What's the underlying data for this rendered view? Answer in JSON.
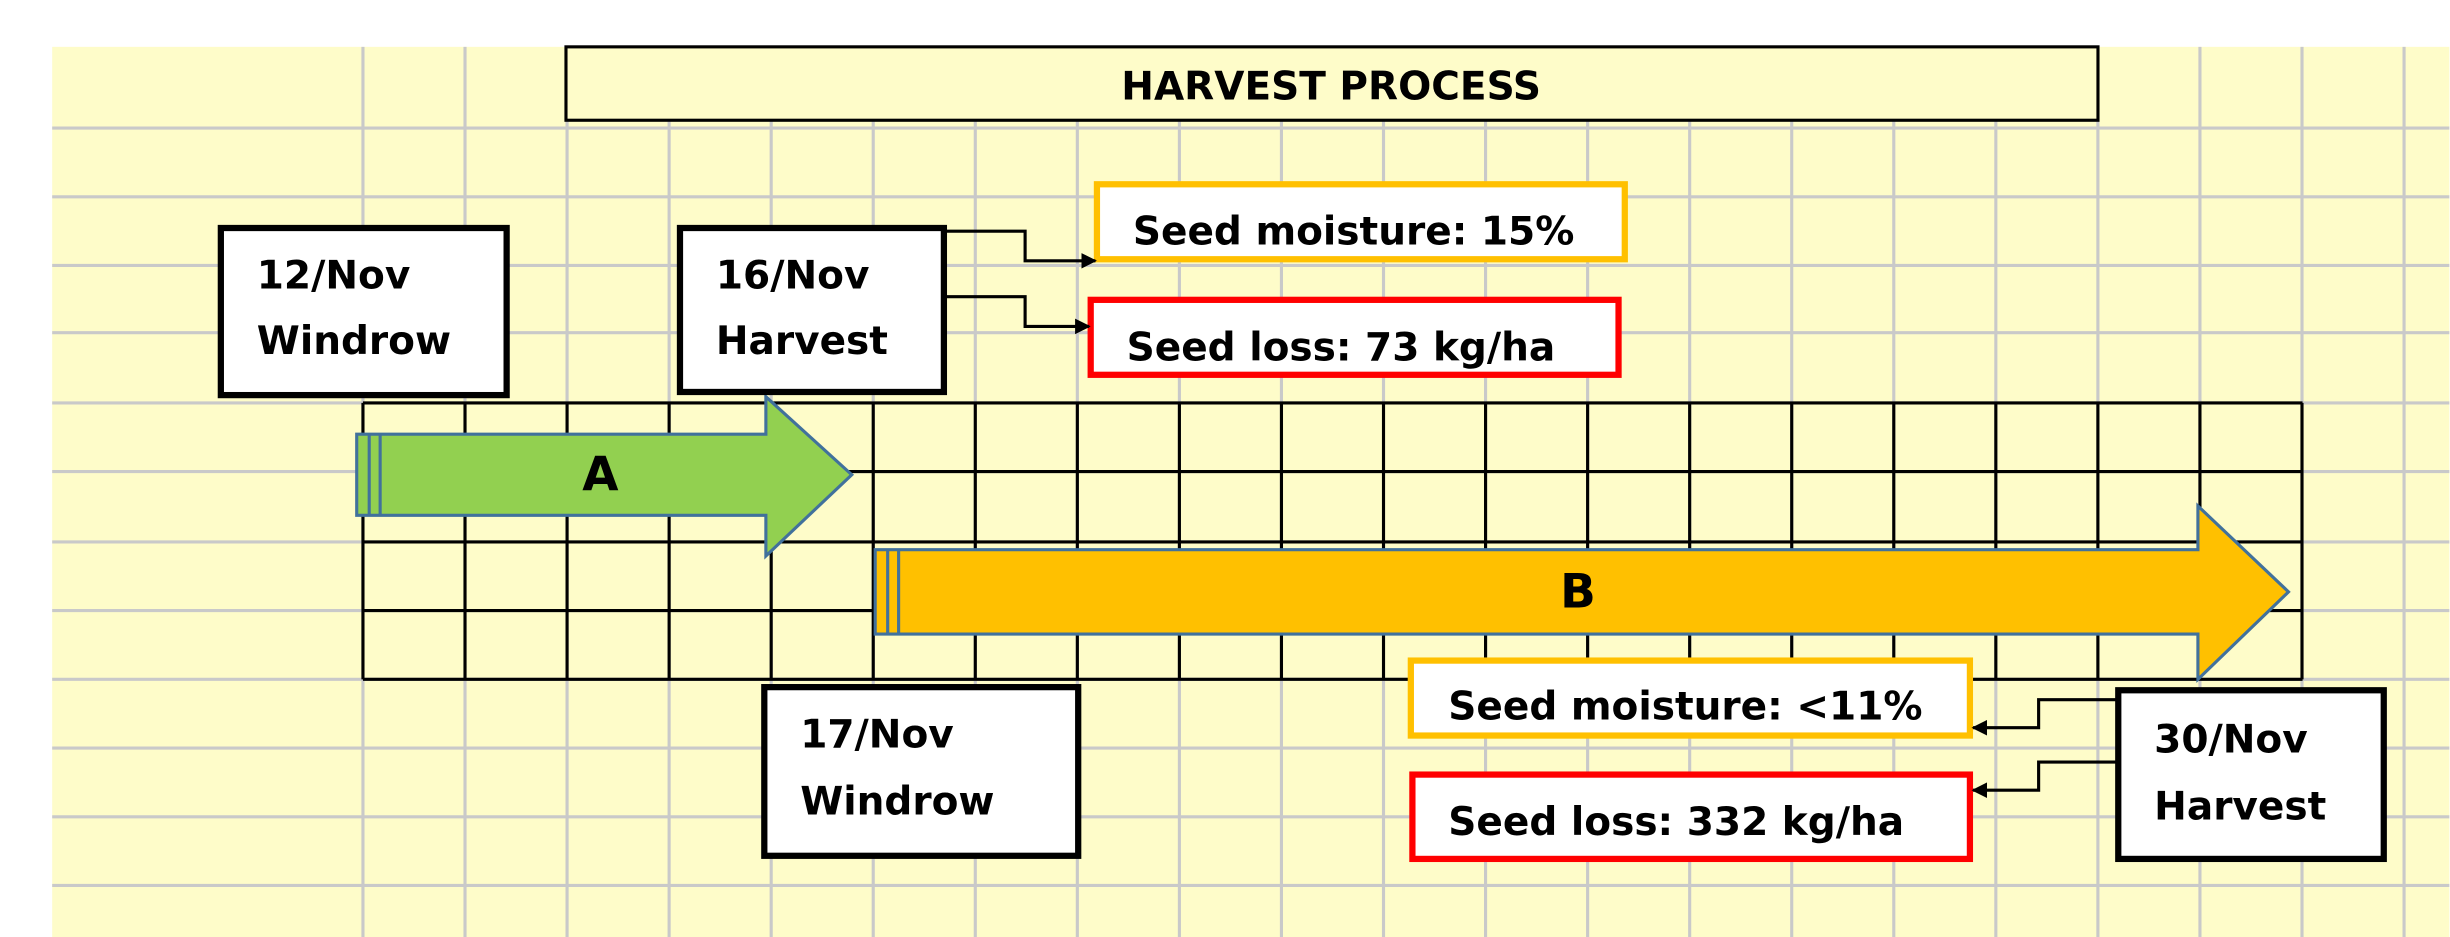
{
  "title": "HARVEST PROCESS",
  "events": [
    {
      "date": "12/Nov",
      "label": "Windrow"
    },
    {
      "date": "16/Nov",
      "label": "Harvest"
    },
    {
      "date": "17/Nov",
      "label": "Windrow"
    },
    {
      "date": "30/Nov",
      "label": "Harvest"
    }
  ],
  "phases": [
    "A",
    "B"
  ],
  "notes": [
    "Seed moisture: 15%",
    "Seed loss: 73 kg/ha",
    "Seed moisture: <11%",
    "Seed loss: 332 kg/ha"
  ]
}
